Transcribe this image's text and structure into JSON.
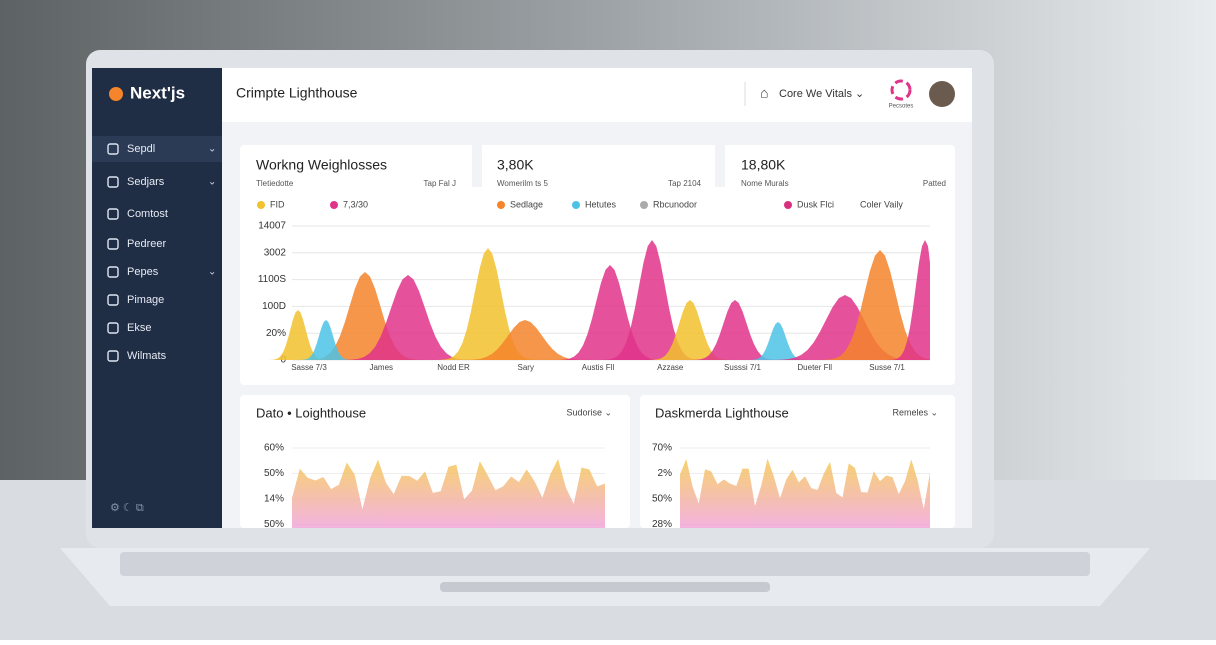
{
  "sidebar": {
    "logo": "Next'js",
    "items": [
      "Sepdl",
      "Sedjars",
      "Comtost",
      "Pedreer",
      "Pepes",
      "Pimage",
      "Ekse",
      "Wilmats"
    ]
  },
  "header": {
    "title": "Crimpte Lighthouse",
    "menu": "Core We Vitals",
    "badge": "Pecsotes"
  },
  "stats": [
    {
      "title": "Workng Weighlosses",
      "label": "Tletiedotte",
      "note": "Tap Fal J"
    },
    {
      "title": "3,80K",
      "label": "Womerilm ts 5",
      "note": "Tap 2104"
    },
    {
      "title": "18,80K",
      "label": "Nome Murals",
      "note": "Patted"
    }
  ],
  "main_chart": {
    "legend": [
      {
        "name": "FID",
        "color": "#f2c12e"
      },
      {
        "name": "7,3/30",
        "color": "#e0338a"
      },
      {
        "name": "Sedlage",
        "color": "#f5842a"
      },
      {
        "name": "Hetutes",
        "color": "#4cc3e6"
      },
      {
        "name": "Rbcunodor",
        "color": "#aaaaaa"
      },
      {
        "name": "Dusk Flci",
        "color": "#d8307f"
      }
    ],
    "menu": "Coler Vaily",
    "y_labels": [
      "14007",
      "3002",
      "1100S",
      "100D",
      "20%",
      "0"
    ],
    "x_labels": [
      "Sasse 7/3",
      "James",
      "Nodd ER",
      "Sary",
      "Austis Fll",
      "Azzase",
      "Susssi 7/1",
      "Dueter Fll",
      "Susse 7/1"
    ]
  },
  "panels": [
    {
      "title": "Dato • Loighthouse",
      "menu": "Sudorise",
      "y_labels": [
        "60%",
        "50%",
        "14%",
        "50%"
      ]
    },
    {
      "title": "Daskmerda Lighthouse",
      "menu": "Remeles",
      "y_labels": [
        "70%",
        "2%",
        "50%",
        "28%"
      ]
    }
  ]
}
